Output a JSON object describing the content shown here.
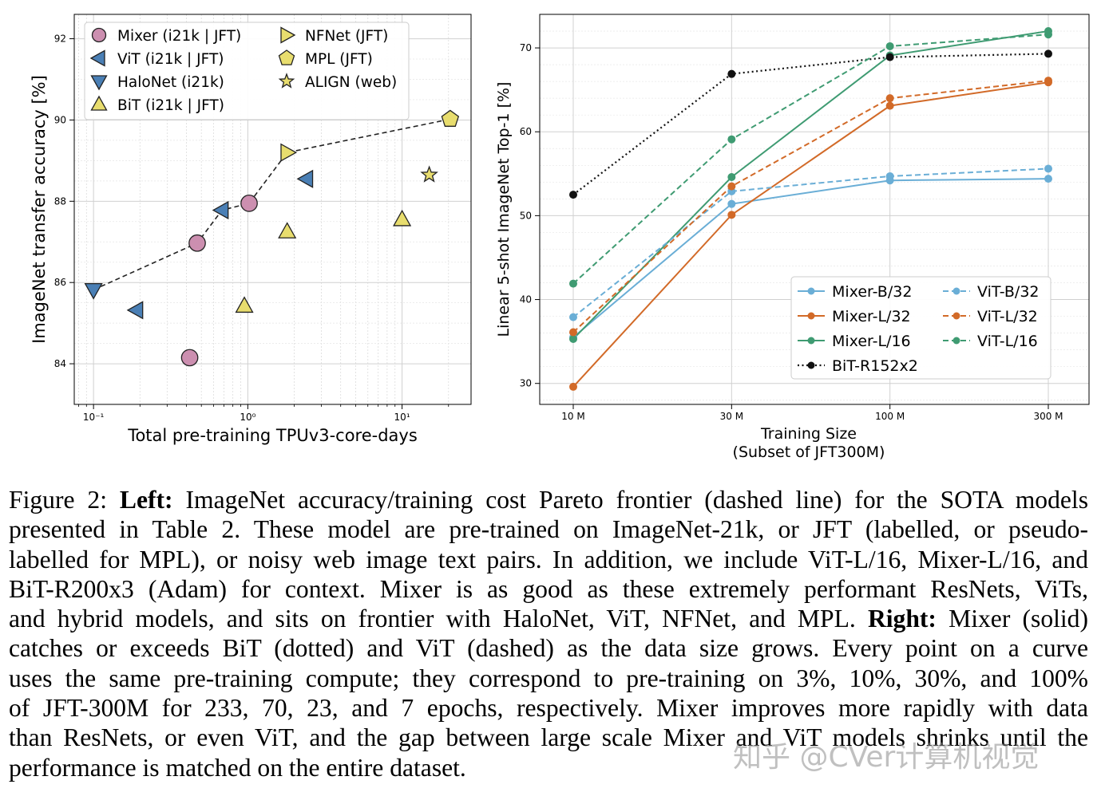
{
  "chart_data": [
    {
      "type": "scatter",
      "xlabel": "Total pre-training TPUv3-core-days",
      "ylabel": "ImageNet transfer accuracy [%]",
      "xscale": "log",
      "xlim": [
        0.075,
        28
      ],
      "ylim": [
        83.0,
        92.6
      ],
      "x_tick_labels": [
        "10⁻¹",
        "10⁰",
        "10¹"
      ],
      "x_tick_values": [
        0.1,
        1,
        10
      ],
      "y_ticks": [
        84,
        86,
        88,
        90,
        92
      ],
      "grid": true,
      "legend_location": "upper-left",
      "series": [
        {
          "name": "Mixer (i21k | JFT)",
          "marker": "circle",
          "color": "#cc8fb0",
          "points": [
            [
              0.42,
              84.15
            ],
            [
              0.47,
              86.97
            ],
            [
              1.02,
              87.95
            ]
          ]
        },
        {
          "name": "ViT (i21k | JFT)",
          "marker": "triangle-left",
          "color": "#4a7fb5",
          "points": [
            [
              0.19,
              85.32
            ],
            [
              0.68,
              87.78
            ],
            [
              2.4,
              88.55
            ]
          ]
        },
        {
          "name": "HaloNet (i21k)",
          "marker": "triangle-down",
          "color": "#4a7fb5",
          "points": [
            [
              0.1,
              85.82
            ]
          ]
        },
        {
          "name": "BiT (i21k | JFT)",
          "marker": "triangle-up",
          "color": "#e8dd6e",
          "points": [
            [
              0.95,
              85.42
            ],
            [
              1.8,
              87.25
            ],
            [
              10.0,
              87.55
            ]
          ]
        },
        {
          "name": "NFNet (JFT)",
          "marker": "triangle-right",
          "color": "#e8dd6e",
          "points": [
            [
              1.8,
              89.2
            ]
          ]
        },
        {
          "name": "MPL (JFT)",
          "marker": "pentagon",
          "color": "#e8dd6e",
          "points": [
            [
              20.5,
              90.02
            ]
          ]
        },
        {
          "name": "ALIGN (web)",
          "marker": "star",
          "color": "#e8dd6e",
          "points": [
            [
              15.0,
              88.65
            ]
          ]
        }
      ],
      "pareto_frontier": [
        [
          0.1,
          85.82
        ],
        [
          0.47,
          86.97
        ],
        [
          0.68,
          87.78
        ],
        [
          1.02,
          87.95
        ],
        [
          1.8,
          89.2
        ],
        [
          20.5,
          90.02
        ]
      ]
    },
    {
      "type": "line",
      "xlabel": "Training Size",
      "xlabel2": "(Subset of JFT300M)",
      "ylabel": "Linear 5-shot ImageNet Top-1 [%]",
      "categories": [
        "10 M",
        "30 M",
        "100 M",
        "300 M"
      ],
      "ylim": [
        27.5,
        74
      ],
      "y_ticks": [
        30,
        40,
        50,
        60,
        70
      ],
      "grid": true,
      "legend_location": "lower-right",
      "series": [
        {
          "name": "Mixer-B/32",
          "style": "solid",
          "color": "#6aaed6",
          "values": [
            35.5,
            51.4,
            54.2,
            54.4
          ]
        },
        {
          "name": "Mixer-L/32",
          "style": "solid",
          "color": "#d26a28",
          "values": [
            29.6,
            50.1,
            63.1,
            65.9
          ]
        },
        {
          "name": "Mixer-L/16",
          "style": "solid",
          "color": "#3f9b72",
          "values": [
            35.3,
            54.6,
            69.1,
            72.0
          ]
        },
        {
          "name": "BiT-R152x2",
          "style": "dotted",
          "color": "#111111",
          "values": [
            52.5,
            66.9,
            68.9,
            69.3
          ]
        },
        {
          "name": "ViT-B/32",
          "style": "dashed",
          "color": "#6aaed6",
          "values": [
            37.9,
            52.9,
            54.7,
            55.6
          ]
        },
        {
          "name": "ViT-L/32",
          "style": "dashed",
          "color": "#d26a28",
          "values": [
            36.1,
            53.5,
            64.0,
            66.1
          ]
        },
        {
          "name": "ViT-L/16",
          "style": "dashed",
          "color": "#3f9b72",
          "values": [
            41.9,
            59.1,
            70.2,
            71.6
          ]
        }
      ]
    }
  ],
  "caption": {
    "lines": [
      [
        {
          "t": "Figure 2: "
        },
        {
          "t": "Left:",
          "b": true
        },
        {
          "t": " ImageNet accuracy/training cost Pareto frontier (dashed line) for the SOTA models"
        }
      ],
      [
        {
          "t": "presented in Table 2. These model are pre-trained on ImageNet-21k, or JFT (labelled, or pseudo-"
        }
      ],
      [
        {
          "t": "labelled for MPL), or noisy web image text pairs. In addition, we include ViT-L/16, Mixer-L/16, and"
        }
      ],
      [
        {
          "t": "BiT-R200x3 (Adam) for context. Mixer is as good as these extremely performant ResNets, ViTs,"
        }
      ],
      [
        {
          "t": "and hybrid models, and sits on frontier with HaloNet, ViT, NFNet, and MPL. "
        },
        {
          "t": "Right:",
          "b": true
        },
        {
          "t": " Mixer (solid)"
        }
      ],
      [
        {
          "t": "catches or exceeds BiT (dotted) and ViT (dashed) as the data size grows. Every point on a curve"
        }
      ],
      [
        {
          "t": "uses the same pre-training compute; they correspond to pre-training on 3%, 10%, 30%, and 100%"
        }
      ],
      [
        {
          "t": "of JFT-300M for 233, 70, 23, and 7 epochs, respectively. Mixer improves more rapidly with data"
        }
      ],
      [
        {
          "t": "than ResNets, or even ViT, and the gap between large scale Mixer and ViT models shrinks until the"
        }
      ],
      [
        {
          "t": "performance is matched on the entire dataset."
        }
      ]
    ]
  },
  "watermark": "知乎 @CVer计算机视觉"
}
